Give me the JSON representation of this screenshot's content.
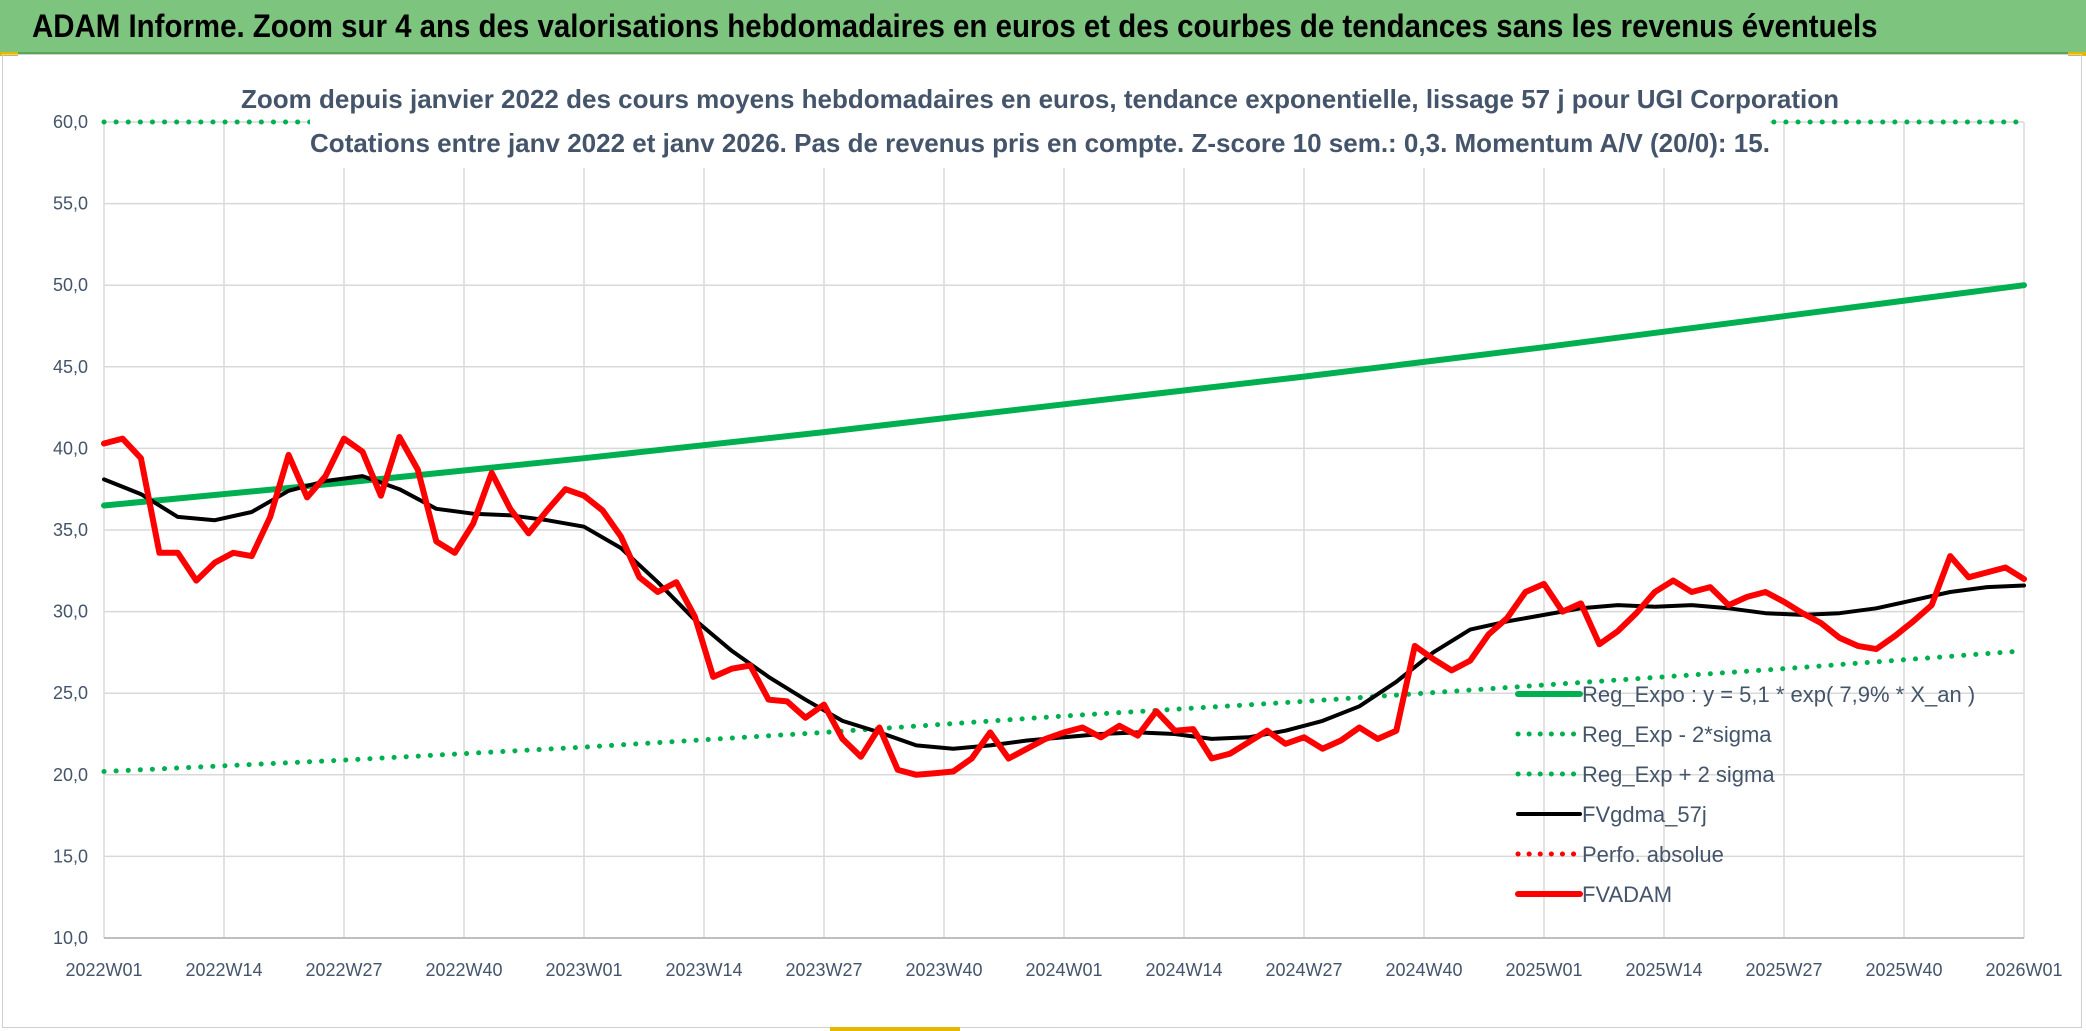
{
  "banner": {
    "title": "ADAM Informe. Zoom sur 4 ans des valorisations hebdomadaires en euros et des courbes de tendances sans les revenus éventuels"
  },
  "colors": {
    "banner_bg": "#7dc47e",
    "regression": "#00b050",
    "fvadam": "#ff0000",
    "fvgdma": "#000000",
    "perf": "#ff0000",
    "grid": "#d9d9d9",
    "text": "#44546a"
  },
  "chart_data": {
    "type": "line",
    "title_line1": "Zoom depuis janvier 2022 des cours moyens hebdomadaires en euros, tendance exponentielle, lissage 57 j pour UGI Corporation",
    "title_line2": "Cotations entre janv 2022 et janv 2026. Pas de revenus pris en compte. Z-score 10 sem.: 0,3. Momentum A/V (20/0): 15.",
    "x_tick_labels": [
      "2022W01",
      "2022W14",
      "2022W27",
      "2022W40",
      "2023W01",
      "2023W14",
      "2023W27",
      "2023W40",
      "2024W01",
      "2024W14",
      "2024W27",
      "2024W40",
      "2025W01",
      "2025W14",
      "2025W27",
      "2025W40",
      "2026W01"
    ],
    "y_tick_labels": [
      "10,0",
      "15,0",
      "20,0",
      "25,0",
      "30,0",
      "35,0",
      "40,0",
      "45,0",
      "50,0",
      "55,0",
      "60,0"
    ],
    "ylim": [
      10,
      60
    ],
    "x_range_weeks": [
      0,
      208
    ],
    "grid": true,
    "legend_position": "right-bottom",
    "series": [
      {
        "name": "Reg_Expo : y = 5,1 * exp( 7,9% *  X_an )",
        "style": "solid",
        "color": "#00b050",
        "x": [
          0,
          26,
          52,
          78,
          104,
          130,
          156,
          182,
          208
        ],
        "y": [
          36.5,
          37.9,
          39.4,
          41.0,
          42.7,
          44.4,
          46.2,
          48.1,
          50.0
        ]
      },
      {
        "name": "Reg_Exp - 2*sigma",
        "style": "dotted",
        "color": "#00b050",
        "x": [
          0,
          26,
          52,
          78,
          104,
          130,
          156,
          182,
          208
        ],
        "y": [
          20.2,
          20.9,
          21.7,
          22.6,
          23.6,
          24.5,
          25.5,
          26.5,
          27.6
        ]
      },
      {
        "name": "Reg_Exp + 2 sigma",
        "style": "dotted",
        "color": "#00b050",
        "x": [
          0,
          208
        ],
        "y": [
          60.0,
          60.0
        ]
      },
      {
        "name": "FVgdma_57j",
        "style": "solid",
        "color": "#000000",
        "x": [
          0,
          4,
          8,
          12,
          16,
          20,
          24,
          28,
          32,
          36,
          40,
          44,
          48,
          52,
          56,
          60,
          64,
          68,
          72,
          76,
          80,
          84,
          88,
          92,
          96,
          100,
          104,
          108,
          112,
          116,
          120,
          124,
          128,
          132,
          136,
          140,
          144,
          148,
          152,
          156,
          160,
          164,
          168,
          172,
          176,
          180,
          184,
          188,
          192,
          196,
          200,
          204,
          208
        ],
        "y": [
          38.1,
          37.2,
          35.8,
          35.6,
          36.1,
          37.4,
          38.0,
          38.3,
          37.5,
          36.3,
          36.0,
          35.9,
          35.6,
          35.2,
          33.9,
          31.8,
          29.5,
          27.6,
          26.0,
          24.6,
          23.3,
          22.6,
          21.8,
          21.6,
          21.8,
          22.1,
          22.3,
          22.5,
          22.6,
          22.5,
          22.2,
          22.3,
          22.7,
          23.3,
          24.2,
          25.7,
          27.5,
          28.9,
          29.4,
          29.8,
          30.2,
          30.4,
          30.3,
          30.4,
          30.2,
          29.9,
          29.8,
          29.9,
          30.2,
          30.7,
          31.2,
          31.5,
          31.6
        ]
      },
      {
        "name": "Perfo. absolue",
        "style": "dotted",
        "color": "#ff0000",
        "x": [],
        "y": []
      },
      {
        "name": "FVADAM",
        "style": "solid",
        "color": "#ff0000",
        "x": [
          0,
          2,
          4,
          6,
          8,
          10,
          12,
          14,
          16,
          18,
          20,
          22,
          24,
          26,
          28,
          30,
          32,
          34,
          36,
          38,
          40,
          42,
          44,
          46,
          48,
          50,
          52,
          54,
          56,
          58,
          60,
          62,
          64,
          66,
          68,
          70,
          72,
          74,
          76,
          78,
          80,
          82,
          84,
          86,
          88,
          90,
          92,
          94,
          96,
          98,
          100,
          102,
          104,
          106,
          108,
          110,
          112,
          114,
          116,
          118,
          120,
          122,
          124,
          126,
          128,
          130,
          132,
          134,
          136,
          138,
          140,
          142,
          144,
          146,
          148,
          150,
          152,
          154,
          156,
          158,
          160,
          162,
          164,
          166,
          168,
          170,
          172,
          174,
          176,
          178,
          180,
          182,
          184,
          186,
          188,
          190,
          192,
          194,
          196,
          198,
          200,
          202,
          204,
          206,
          208
        ],
        "y": [
          40.3,
          40.6,
          39.4,
          33.6,
          33.6,
          31.9,
          33.0,
          33.6,
          33.4,
          35.8,
          39.6,
          37.0,
          38.3,
          40.6,
          39.8,
          37.1,
          40.7,
          38.7,
          34.3,
          33.6,
          35.4,
          38.5,
          36.3,
          34.8,
          36.2,
          37.5,
          37.1,
          36.2,
          34.6,
          32.1,
          31.2,
          31.8,
          29.7,
          26.0,
          26.5,
          26.7,
          24.6,
          24.5,
          23.5,
          24.3,
          22.2,
          21.1,
          22.9,
          20.3,
          20.0,
          20.1,
          20.2,
          21.0,
          22.6,
          21.0,
          21.6,
          22.2,
          22.6,
          22.9,
          22.3,
          23.0,
          22.4,
          23.9,
          22.7,
          22.8,
          21.0,
          21.3,
          22.0,
          22.7,
          21.9,
          22.3,
          21.6,
          22.1,
          22.9,
          22.2,
          22.7,
          27.9,
          27.1,
          26.4,
          27.0,
          28.6,
          29.6,
          31.2,
          31.7,
          30.0,
          30.5,
          28.0,
          28.8,
          29.9,
          31.2,
          31.9,
          31.2,
          31.5,
          30.4,
          30.9,
          31.2,
          30.6,
          29.9,
          29.3,
          28.4,
          27.9,
          27.7,
          28.5,
          29.4,
          30.4,
          33.4,
          32.1,
          32.4,
          32.7,
          32.0
        ]
      }
    ]
  }
}
